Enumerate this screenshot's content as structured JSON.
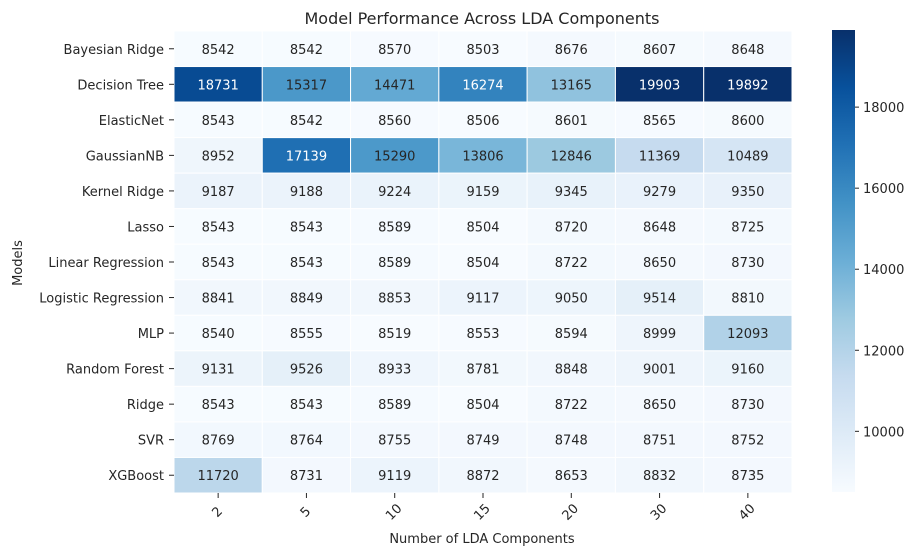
{
  "chart_data": {
    "type": "heatmap",
    "title": "Model Performance Across LDA Components",
    "xlabel": "Number of LDA Components",
    "ylabel": "Models",
    "x_categories": [
      "2",
      "5",
      "10",
      "15",
      "20",
      "30",
      "40"
    ],
    "y_categories": [
      "Bayesian Ridge",
      "Decision Tree",
      "ElasticNet",
      "GaussianNB",
      "Kernel Ridge",
      "Lasso",
      "Linear Regression",
      "Logistic Regression",
      "MLP",
      "Random Forest",
      "Ridge",
      "SVR",
      "XGBoost"
    ],
    "values": [
      [
        8542,
        8542,
        8570,
        8503,
        8676,
        8607,
        8648
      ],
      [
        18731,
        15317,
        14471,
        16274,
        13165,
        19903,
        19892
      ],
      [
        8543,
        8542,
        8560,
        8506,
        8601,
        8565,
        8600
      ],
      [
        8952,
        17139,
        15290,
        13806,
        12846,
        11369,
        10489
      ],
      [
        9187,
        9188,
        9224,
        9159,
        9345,
        9279,
        9350
      ],
      [
        8543,
        8543,
        8589,
        8504,
        8720,
        8648,
        8725
      ],
      [
        8543,
        8543,
        8589,
        8504,
        8722,
        8650,
        8730
      ],
      [
        8841,
        8849,
        8853,
        9117,
        9050,
        9514,
        8810
      ],
      [
        8540,
        8555,
        8519,
        8553,
        8594,
        8999,
        12093
      ],
      [
        9131,
        9526,
        8933,
        8781,
        8848,
        9001,
        9160
      ],
      [
        8543,
        8543,
        8589,
        8504,
        8722,
        8650,
        8730
      ],
      [
        8769,
        8764,
        8755,
        8749,
        8748,
        8751,
        8752
      ],
      [
        11720,
        8731,
        9119,
        8872,
        8653,
        8832,
        8735
      ]
    ],
    "colormap": "Blues",
    "color_range": [
      8503,
      19903
    ],
    "colorbar_ticks": [
      10000,
      12000,
      14000,
      16000,
      18000
    ],
    "cell_border_color": "#ffffff",
    "x_tick_rotation_deg": 45
  }
}
